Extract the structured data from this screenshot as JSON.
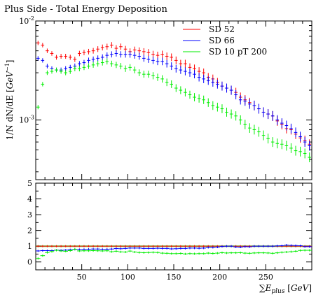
{
  "chart_data": [
    {
      "type": "scatter",
      "title": "Plus Side - Total Energy Deposition",
      "ylabel": "1/N dN/dE [GeV^-1]",
      "yscale": "log",
      "ylim": [
        0.00025,
        0.01
      ],
      "xlim": [
        0,
        300
      ],
      "y_ticks": [
        {
          "value": 0.01,
          "label": "10^-2"
        },
        {
          "value": 0.001,
          "label": "10^-3"
        }
      ],
      "legend": "top-right",
      "colors": {
        "SD 52": "#ff0000",
        "SD 66": "#0000ff",
        "SD 10 pT 200": "#00ee00"
      },
      "x": [
        2.5,
        7.5,
        12.5,
        17.5,
        22.5,
        27.5,
        32.5,
        37.5,
        42.5,
        47.5,
        52.5,
        57.5,
        62.5,
        67.5,
        72.5,
        77.5,
        82.5,
        87.5,
        92.5,
        97.5,
        102.5,
        107.5,
        112.5,
        117.5,
        122.5,
        127.5,
        132.5,
        137.5,
        142.5,
        147.5,
        152.5,
        157.5,
        162.5,
        167.5,
        172.5,
        177.5,
        182.5,
        187.5,
        192.5,
        197.5,
        202.5,
        207.5,
        212.5,
        217.5,
        222.5,
        227.5,
        232.5,
        237.5,
        242.5,
        247.5,
        252.5,
        257.5,
        262.5,
        267.5,
        272.5,
        277.5,
        282.5,
        287.5,
        292.5,
        297.5
      ],
      "series": [
        {
          "name": "SD 52",
          "values": [
            0.006,
            0.0057,
            0.005,
            0.0047,
            0.0043,
            0.0044,
            0.0044,
            0.0043,
            0.0041,
            0.0047,
            0.0048,
            0.0049,
            0.005,
            0.0052,
            0.0054,
            0.0055,
            0.0057,
            0.0053,
            0.0055,
            0.0052,
            0.0049,
            0.0051,
            0.005,
            0.0049,
            0.0048,
            0.0046,
            0.0045,
            0.0046,
            0.0044,
            0.0043,
            0.004,
            0.0037,
            0.0037,
            0.0034,
            0.0033,
            0.0031,
            0.003,
            0.0027,
            0.0026,
            0.0024,
            0.0022,
            0.0021,
            0.002,
            0.0019,
            0.0017,
            0.0016,
            0.0015,
            0.0014,
            0.0013,
            0.0012,
            0.00115,
            0.0011,
            0.00098,
            0.0009,
            0.00082,
            0.0008,
            0.00072,
            0.00066,
            0.00062,
            0.00057
          ]
        },
        {
          "name": "SD 66",
          "values": [
            0.0042,
            0.004,
            0.0035,
            0.0033,
            0.0032,
            0.0032,
            0.0033,
            0.0034,
            0.0035,
            0.0037,
            0.0038,
            0.004,
            0.0041,
            0.0042,
            0.0043,
            0.0045,
            0.0046,
            0.0047,
            0.0046,
            0.0046,
            0.0046,
            0.0045,
            0.0044,
            0.0042,
            0.0041,
            0.004,
            0.0039,
            0.0039,
            0.0037,
            0.0035,
            0.0033,
            0.0032,
            0.0031,
            0.003,
            0.0029,
            0.0027,
            0.0026,
            0.0025,
            0.0024,
            0.0023,
            0.0022,
            0.0021,
            0.002,
            0.0018,
            0.0016,
            0.00155,
            0.00145,
            0.0014,
            0.0013,
            0.0012,
            0.00115,
            0.0011,
            0.001,
            0.00093,
            0.00088,
            0.00082,
            0.00075,
            0.00068,
            0.0006,
            0.00055
          ]
        },
        {
          "name": "SD 10 pT 200",
          "values": [
            0.00135,
            0.0023,
            0.003,
            0.0031,
            0.0032,
            0.0031,
            0.003,
            0.0031,
            0.0033,
            0.0033,
            0.0034,
            0.0035,
            0.0036,
            0.0037,
            0.0038,
            0.0039,
            0.0037,
            0.0036,
            0.0035,
            0.0033,
            0.0034,
            0.0032,
            0.003,
            0.0029,
            0.0029,
            0.0028,
            0.0027,
            0.0026,
            0.0024,
            0.0023,
            0.0021,
            0.002,
            0.0019,
            0.0018,
            0.0017,
            0.00165,
            0.0016,
            0.0015,
            0.0014,
            0.00135,
            0.0013,
            0.0012,
            0.00115,
            0.0011,
            0.001,
            0.0009,
            0.00083,
            0.0008,
            0.00076,
            0.0007,
            0.00065,
            0.0006,
            0.00058,
            0.00057,
            0.00055,
            0.00052,
            0.00049,
            0.00048,
            0.00046,
            0.00042
          ]
        }
      ]
    },
    {
      "type": "scatter",
      "xlabel": "∑E_plus [GeV]",
      "ylim": [
        -0.5,
        5
      ],
      "xlim": [
        0,
        300
      ],
      "y_ticks": [
        0,
        1,
        2,
        3,
        4,
        5
      ],
      "x_ticks": [
        50,
        100,
        150,
        200,
        250
      ],
      "band": [
        0.95,
        1.05
      ],
      "x": [
        2.5,
        7.5,
        12.5,
        17.5,
        22.5,
        27.5,
        32.5,
        37.5,
        42.5,
        47.5,
        52.5,
        57.5,
        62.5,
        67.5,
        72.5,
        77.5,
        82.5,
        87.5,
        92.5,
        97.5,
        102.5,
        107.5,
        112.5,
        117.5,
        122.5,
        127.5,
        132.5,
        137.5,
        142.5,
        147.5,
        152.5,
        157.5,
        162.5,
        167.5,
        172.5,
        177.5,
        182.5,
        187.5,
        192.5,
        197.5,
        202.5,
        207.5,
        212.5,
        217.5,
        222.5,
        227.5,
        232.5,
        237.5,
        242.5,
        247.5,
        252.5,
        257.5,
        262.5,
        267.5,
        272.5,
        277.5,
        282.5,
        287.5,
        292.5,
        297.5
      ],
      "series": [
        {
          "name": "SD 52",
          "values": [
            1,
            1,
            1,
            1,
            1,
            1,
            1,
            1,
            1,
            1,
            1,
            1,
            1,
            1,
            1,
            1,
            1,
            1,
            1,
            1,
            1,
            1,
            1,
            1,
            1,
            1,
            1,
            1,
            1,
            1,
            1,
            1,
            1,
            1,
            1,
            1,
            1,
            1,
            1,
            1,
            1,
            1,
            1,
            1,
            1,
            1,
            1,
            1,
            1,
            1,
            1,
            1,
            1,
            1,
            1,
            1,
            1,
            1,
            1,
            1
          ]
        },
        {
          "name": "SD 66",
          "values": [
            0.7,
            0.72,
            0.72,
            0.72,
            0.75,
            0.74,
            0.75,
            0.78,
            0.8,
            0.79,
            0.8,
            0.81,
            0.82,
            0.82,
            0.8,
            0.81,
            0.82,
            0.85,
            0.84,
            0.86,
            0.88,
            0.88,
            0.88,
            0.86,
            0.86,
            0.86,
            0.87,
            0.86,
            0.86,
            0.83,
            0.84,
            0.86,
            0.86,
            0.88,
            0.88,
            0.87,
            0.88,
            0.92,
            0.92,
            0.94,
            0.98,
            1.0,
            1.0,
            0.95,
            0.94,
            0.97,
            0.96,
            1.0,
            1.0,
            1.0,
            1.0,
            1.0,
            1.02,
            1.03,
            1.07,
            1.05,
            1.04,
            1.03,
            0.97,
            0.97
          ]
        },
        {
          "name": "SD 10 pT 200",
          "values": [
            0.22,
            0.4,
            0.6,
            0.66,
            0.74,
            0.7,
            0.68,
            0.72,
            0.8,
            0.7,
            0.71,
            0.71,
            0.72,
            0.71,
            0.7,
            0.71,
            0.65,
            0.68,
            0.64,
            0.63,
            0.69,
            0.63,
            0.6,
            0.59,
            0.6,
            0.61,
            0.6,
            0.56,
            0.55,
            0.53,
            0.53,
            0.54,
            0.51,
            0.53,
            0.52,
            0.53,
            0.53,
            0.56,
            0.54,
            0.56,
            0.59,
            0.57,
            0.58,
            0.58,
            0.59,
            0.56,
            0.55,
            0.57,
            0.58,
            0.58,
            0.57,
            0.55,
            0.58,
            0.61,
            0.63,
            0.65,
            0.68,
            0.73,
            0.74,
            0.74
          ]
        }
      ]
    }
  ]
}
